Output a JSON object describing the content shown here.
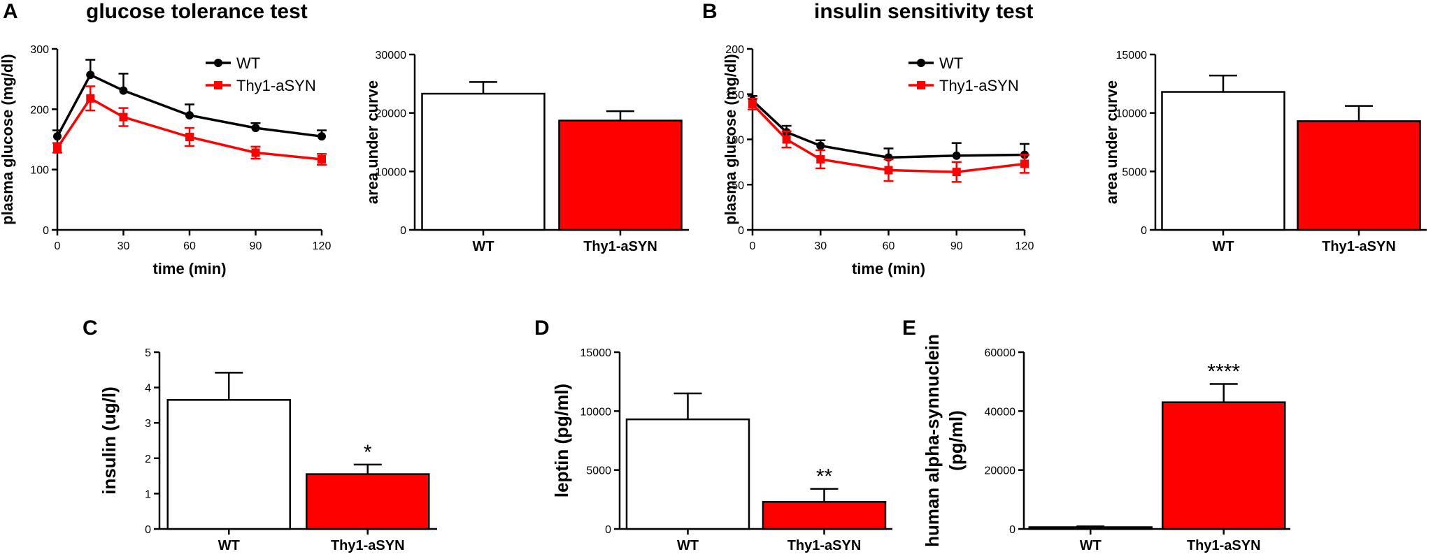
{
  "panels": {
    "A": {
      "letter": "A",
      "title": "glucose tolerance test"
    },
    "B": {
      "letter": "B",
      "title": "insulin sensitivity test"
    },
    "C": {
      "letter": "C"
    },
    "D": {
      "letter": "D"
    },
    "E": {
      "letter": "E"
    }
  },
  "colors": {
    "wt": "#000000",
    "thy1": "#ff0000",
    "wt_bar_fill": "#ffffff",
    "thy1_bar_fill": "#ff0000"
  },
  "chart_data": [
    {
      "id": "A-line",
      "type": "line",
      "title": "glucose tolerance test",
      "xlabel": "time (min)",
      "ylabel": "plasma glucose (mg/dl)",
      "x": [
        0,
        15,
        30,
        60,
        90,
        120
      ],
      "xticks": [
        0,
        30,
        60,
        90,
        120
      ],
      "xlim": [
        0,
        120
      ],
      "yticks": [
        0,
        100,
        200,
        300
      ],
      "ylim": [
        0,
        300
      ],
      "legend": "top-right",
      "series": [
        {
          "name": "WT",
          "color": "#000000",
          "marker": "circle",
          "values": [
            155,
            257,
            231,
            190,
            169,
            155
          ],
          "errors": [
            10,
            25,
            28,
            18,
            8,
            10
          ]
        },
        {
          "name": "Thy1-aSYN",
          "color": "#ff0000",
          "marker": "square",
          "values": [
            136,
            218,
            187,
            154,
            128,
            117
          ],
          "errors": [
            8,
            20,
            15,
            15,
            10,
            9
          ]
        }
      ]
    },
    {
      "id": "A-bar",
      "type": "bar",
      "xlabel": "",
      "ylabel": "area under curve",
      "categories": [
        "WT",
        "Thy1-aSYN"
      ],
      "values": [
        23300,
        18700
      ],
      "errors": [
        2000,
        1600
      ],
      "yticks": [
        0,
        10000,
        20000,
        30000
      ],
      "ylim": [
        0,
        30000
      ]
    },
    {
      "id": "B-line",
      "type": "line",
      "title": "insulin sensitivity test",
      "xlabel": "time (min)",
      "ylabel": "plasma glucose (mg/dl)",
      "x": [
        0,
        15,
        30,
        60,
        90,
        120
      ],
      "xticks": [
        0,
        30,
        60,
        90,
        120
      ],
      "xlim": [
        0,
        120
      ],
      "yticks": [
        0,
        50,
        100,
        150,
        200
      ],
      "ylim": [
        0,
        200
      ],
      "legend": "top-right",
      "series": [
        {
          "name": "WT",
          "color": "#000000",
          "marker": "circle",
          "values": [
            143,
            108,
            93,
            80,
            82,
            83
          ],
          "errors": [
            5,
            7,
            6,
            10,
            14,
            12
          ]
        },
        {
          "name": "Thy1-aSYN",
          "color": "#ff0000",
          "marker": "square",
          "values": [
            139,
            100,
            78,
            66,
            64,
            73
          ],
          "errors": [
            6,
            9,
            10,
            12,
            11,
            10
          ]
        }
      ]
    },
    {
      "id": "B-bar",
      "type": "bar",
      "xlabel": "",
      "ylabel": "area under curve",
      "categories": [
        "WT",
        "Thy1-aSYN"
      ],
      "values": [
        11800,
        9300
      ],
      "errors": [
        1400,
        1300
      ],
      "yticks": [
        0,
        5000,
        10000,
        15000
      ],
      "ylim": [
        0,
        15000
      ]
    },
    {
      "id": "C-bar",
      "type": "bar",
      "xlabel": "",
      "ylabel": "insulin (ug/l)",
      "categories": [
        "WT",
        "Thy1-aSYN"
      ],
      "values": [
        3.65,
        1.55
      ],
      "errors": [
        0.77,
        0.27
      ],
      "significance": [
        "",
        "*"
      ],
      "yticks": [
        0,
        1,
        2,
        3,
        4,
        5
      ],
      "ylim": [
        0,
        5
      ]
    },
    {
      "id": "D-bar",
      "type": "bar",
      "xlabel": "",
      "ylabel": "leptin (pg/ml)",
      "categories": [
        "WT",
        "Thy1-aSYN"
      ],
      "values": [
        9300,
        2300
      ],
      "errors": [
        2200,
        1100
      ],
      "significance": [
        "",
        "**"
      ],
      "yticks": [
        0,
        5000,
        10000,
        15000
      ],
      "ylim": [
        0,
        15000
      ]
    },
    {
      "id": "E-bar",
      "type": "bar",
      "xlabel": "",
      "ylabel": "human alpha-synnuclein",
      "ylabel2": "(pg/ml)",
      "categories": [
        "WT",
        "Thy1-aSYN"
      ],
      "values": [
        600,
        43000
      ],
      "errors": [
        300,
        6200
      ],
      "significance": [
        "",
        "****"
      ],
      "yticks": [
        0,
        20000,
        40000,
        60000
      ],
      "ylim": [
        0,
        60000
      ]
    }
  ]
}
